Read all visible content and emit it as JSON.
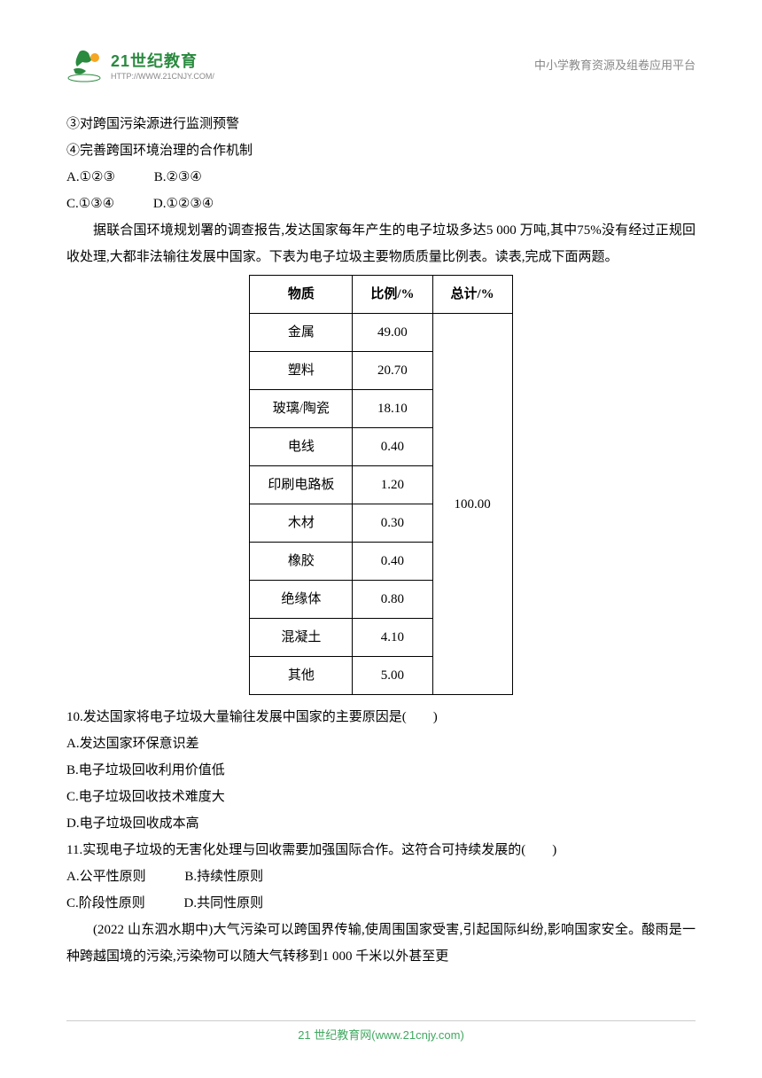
{
  "header": {
    "logo_title": "21世纪教育",
    "logo_url": "HTTP://WWW.21CNJY.COM/",
    "right_text": "中小学教育资源及组卷应用平台"
  },
  "body": {
    "line3": "③对跨国污染源进行监测预警",
    "line4": "④完善跨国环境治理的合作机制",
    "opt_a": "A.①②③",
    "opt_b": "B.②③④",
    "opt_c": "C.①③④",
    "opt_d": "D.①②③④",
    "passage": "据联合国环境规划署的调查报告,发达国家每年产生的电子垃圾多达5 000 万吨,其中75%没有经过正规回收处理,大都非法输往发展中国家。下表为电子垃圾主要物质质量比例表。读表,完成下面两题。",
    "table": {
      "headers": [
        "物质",
        "比例/%",
        "总计/%"
      ],
      "rows": [
        {
          "material": "金属",
          "ratio": "49.00"
        },
        {
          "material": "塑料",
          "ratio": "20.70"
        },
        {
          "material": "玻璃/陶瓷",
          "ratio": "18.10"
        },
        {
          "material": "电线",
          "ratio": "0.40"
        },
        {
          "material": "印刷电路板",
          "ratio": "1.20"
        },
        {
          "material": "木材",
          "ratio": "0.30"
        },
        {
          "material": "橡胶",
          "ratio": "0.40"
        },
        {
          "material": "绝缘体",
          "ratio": "0.80"
        },
        {
          "material": "混凝土",
          "ratio": "4.10"
        },
        {
          "material": "其他",
          "ratio": "5.00"
        }
      ],
      "total": "100.00"
    },
    "q10": "10.发达国家将电子垃圾大量输往发展中国家的主要原因是(　　)",
    "q10_a": "A.发达国家环保意识差",
    "q10_b": "B.电子垃圾回收利用价值低",
    "q10_c": "C.电子垃圾回收技术难度大",
    "q10_d": "D.电子垃圾回收成本高",
    "q11": "11.实现电子垃圾的无害化处理与回收需要加强国际合作。这符合可持续发展的(　　)",
    "q11_a": "A.公平性原则",
    "q11_b": "B.持续性原则",
    "q11_c": "C.阶段性原则",
    "q11_d": "D.共同性原则",
    "passage2": "(2022 山东泗水期中)大气污染可以跨国界传输,使周围国家受害,引起国际纠纷,影响国家安全。酸雨是一种跨越国境的污染,污染物可以随大气转移到1 000 千米以外甚至更"
  },
  "footer": {
    "text": "21 世纪教育网(www.21cnjy.com)"
  }
}
